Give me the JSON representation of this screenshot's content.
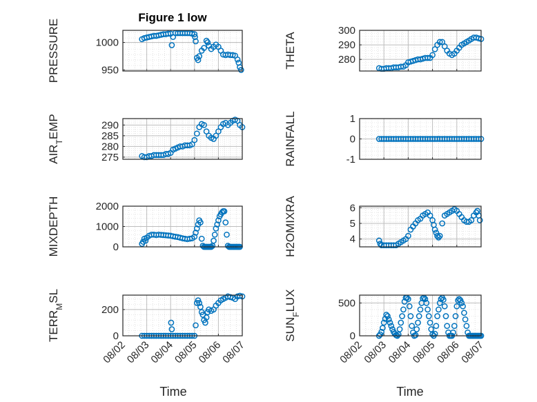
{
  "figure": {
    "title": "Figure 1 low",
    "xlabel": "Time",
    "xticks": [
      "08/02",
      "08/03",
      "08/04",
      "08/05",
      "08/06",
      "08/07"
    ],
    "marker": "open-circle",
    "marker_color": "#0072BD"
  },
  "chart_data": [
    {
      "type": "scatter",
      "name": "pressure-panel",
      "ylabel": "PRESSURE",
      "ylabel_sub": "",
      "ylim": [
        948,
        1022
      ],
      "yticks": [
        950,
        1000
      ],
      "xlim": [
        0,
        5
      ],
      "grid": true,
      "x": [
        0.8,
        0.9,
        1.0,
        1.1,
        1.2,
        1.3,
        1.4,
        1.5,
        1.6,
        1.7,
        1.8,
        1.9,
        2.0,
        2.05,
        2.1,
        2.2,
        2.3,
        2.4,
        2.5,
        2.6,
        2.7,
        2.8,
        2.9,
        3.0,
        3.02,
        3.05,
        3.1,
        3.15,
        3.2,
        3.3,
        3.4,
        3.5,
        3.55,
        3.6,
        3.7,
        3.8,
        3.9,
        4.0,
        4.1,
        4.2,
        4.3,
        4.4,
        4.5,
        4.6,
        4.7,
        4.8,
        4.85,
        4.9,
        4.95
      ],
      "y": [
        1006,
        1008,
        1009,
        1010,
        1011,
        1012,
        1012,
        1013,
        1014,
        1015,
        1015,
        1016,
        1016,
        995,
        1010,
        1017,
        1017,
        1017,
        1017,
        1017,
        1017,
        1017,
        1016,
        1015,
        1010,
        1002,
        972,
        968,
        975,
        985,
        990,
        1003,
        1000,
        994,
        988,
        992,
        996,
        992,
        985,
        978,
        977,
        978,
        977,
        977,
        976,
        969,
        963,
        955,
        950
      ]
    },
    {
      "type": "scatter",
      "name": "theta-panel",
      "ylabel": "THETA",
      "ylabel_sub": "",
      "ylim": [
        272,
        300
      ],
      "yticks": [
        280,
        290,
        300
      ],
      "xlim": [
        0,
        5
      ],
      "grid": true,
      "x": [
        0.8,
        0.9,
        1.0,
        1.1,
        1.2,
        1.3,
        1.4,
        1.5,
        1.6,
        1.7,
        1.8,
        1.9,
        2.0,
        2.1,
        2.2,
        2.3,
        2.4,
        2.5,
        2.6,
        2.7,
        2.8,
        2.9,
        3.0,
        3.1,
        3.2,
        3.3,
        3.4,
        3.5,
        3.6,
        3.7,
        3.8,
        3.9,
        4.0,
        4.1,
        4.2,
        4.3,
        4.4,
        4.5,
        4.6,
        4.7,
        4.8,
        4.9,
        5.0
      ],
      "y": [
        274,
        273.5,
        273.5,
        274,
        274,
        274,
        274.5,
        274.5,
        274.5,
        275,
        275,
        276,
        278,
        278.5,
        279,
        279.5,
        280,
        280,
        280.5,
        281,
        281,
        281,
        283,
        287,
        290,
        292,
        292,
        289,
        286,
        284,
        283,
        284,
        286,
        288,
        290,
        291,
        292,
        293,
        294,
        295,
        295,
        294.5,
        294
      ]
    },
    {
      "type": "scatter",
      "name": "air-temp-panel",
      "ylabel": "AIR",
      "ylabel_sub": "T",
      "ylabel_tail": "EMP",
      "ylim": [
        274,
        293
      ],
      "yticks": [
        275,
        280,
        285,
        290
      ],
      "xlim": [
        0,
        5
      ],
      "grid": true,
      "x": [
        0.8,
        0.9,
        1.0,
        1.1,
        1.2,
        1.3,
        1.4,
        1.5,
        1.6,
        1.7,
        1.8,
        1.9,
        2.0,
        2.1,
        2.2,
        2.3,
        2.4,
        2.5,
        2.6,
        2.7,
        2.8,
        2.9,
        3.0,
        3.1,
        3.2,
        3.3,
        3.4,
        3.5,
        3.6,
        3.7,
        3.8,
        3.9,
        4.0,
        4.1,
        4.2,
        4.3,
        4.4,
        4.5,
        4.6,
        4.7,
        4.8,
        4.9,
        5.0
      ],
      "y": [
        275.5,
        275,
        275,
        275.5,
        275.5,
        276,
        276,
        276,
        276,
        276,
        276.5,
        276.5,
        277,
        278.5,
        279,
        279.5,
        280,
        280,
        280.5,
        280.5,
        280.5,
        281,
        283,
        286,
        289,
        290.5,
        290,
        287,
        285,
        284,
        283.5,
        285,
        287,
        289,
        290.5,
        291,
        290,
        291,
        292,
        292.5,
        292,
        290,
        289
      ]
    },
    {
      "type": "scatter",
      "name": "rainfall-panel",
      "ylabel": "RAINFALL",
      "ylabel_sub": "",
      "ylim": [
        -1,
        1
      ],
      "yticks": [
        -1,
        0,
        1
      ],
      "xlim": [
        0,
        5
      ],
      "grid": true,
      "x": [
        0.8,
        0.9,
        1.0,
        1.1,
        1.2,
        1.3,
        1.4,
        1.5,
        1.6,
        1.7,
        1.8,
        1.9,
        2.0,
        2.1,
        2.2,
        2.3,
        2.4,
        2.5,
        2.6,
        2.7,
        2.8,
        2.9,
        3.0,
        3.1,
        3.2,
        3.3,
        3.4,
        3.5,
        3.6,
        3.7,
        3.8,
        3.9,
        4.0,
        4.1,
        4.2,
        4.3,
        4.4,
        4.5,
        4.6,
        4.7,
        4.8,
        4.9,
        5.0
      ],
      "y": [
        0,
        0,
        0,
        0,
        0,
        0,
        0,
        0,
        0,
        0,
        0,
        0,
        0,
        0,
        0,
        0,
        0,
        0,
        0,
        0,
        0,
        0,
        0,
        0,
        0,
        0,
        0,
        0,
        0,
        0,
        0,
        0,
        0,
        0,
        0,
        0,
        0,
        0,
        0,
        0,
        0,
        0,
        0
      ]
    },
    {
      "type": "scatter",
      "name": "mixdepth-panel",
      "ylabel": "MIXDEPTH",
      "ylabel_sub": "",
      "ylim": [
        0,
        2000
      ],
      "yticks": [
        0,
        1000,
        2000
      ],
      "xlim": [
        0,
        5
      ],
      "grid": true,
      "x": [
        0.8,
        0.85,
        0.9,
        0.95,
        1.0,
        1.1,
        1.2,
        1.3,
        1.4,
        1.5,
        1.6,
        1.7,
        1.8,
        1.9,
        2.0,
        2.1,
        2.2,
        2.3,
        2.4,
        2.5,
        2.6,
        2.7,
        2.8,
        2.9,
        3.0,
        3.05,
        3.1,
        3.15,
        3.2,
        3.25,
        3.3,
        3.35,
        3.4,
        3.45,
        3.5,
        3.55,
        3.6,
        3.65,
        3.7,
        3.75,
        3.8,
        3.85,
        3.9,
        3.95,
        4.0,
        4.05,
        4.1,
        4.15,
        4.2,
        4.25,
        4.3,
        4.35,
        4.4,
        4.45,
        4.5,
        4.55,
        4.6,
        4.65,
        4.7,
        4.75,
        4.8,
        4.85,
        4.9
      ],
      "y": [
        150,
        250,
        400,
        300,
        450,
        550,
        600,
        600,
        580,
        600,
        590,
        580,
        570,
        560,
        550,
        520,
        500,
        480,
        450,
        420,
        400,
        380,
        400,
        420,
        500,
        700,
        900,
        1100,
        1300,
        1200,
        400,
        50,
        0,
        0,
        0,
        0,
        0,
        0,
        0,
        50,
        300,
        600,
        900,
        1100,
        1300,
        1500,
        1600,
        1700,
        1750,
        1750,
        1200,
        600,
        50,
        0,
        0,
        0,
        0,
        0,
        0,
        0,
        0,
        0,
        0
      ]
    },
    {
      "type": "scatter",
      "name": "h2omixra-panel",
      "ylabel": "H2OMIXRA",
      "ylabel_sub": "",
      "ylim": [
        3.5,
        6.1
      ],
      "yticks": [
        4,
        5,
        6
      ],
      "xlim": [
        0,
        5
      ],
      "grid": true,
      "x": [
        0.8,
        0.85,
        0.9,
        1.0,
        1.1,
        1.2,
        1.3,
        1.4,
        1.5,
        1.6,
        1.7,
        1.8,
        1.9,
        2.0,
        2.1,
        2.2,
        2.3,
        2.4,
        2.5,
        2.6,
        2.7,
        2.8,
        2.9,
        3.0,
        3.05,
        3.1,
        3.15,
        3.2,
        3.25,
        3.3,
        3.4,
        3.5,
        3.6,
        3.7,
        3.8,
        3.9,
        4.0,
        4.1,
        4.2,
        4.3,
        4.4,
        4.5,
        4.6,
        4.7,
        4.8,
        4.85,
        4.9,
        4.95
      ],
      "y": [
        3.9,
        3.7,
        3.6,
        3.6,
        3.6,
        3.6,
        3.6,
        3.6,
        3.6,
        3.7,
        3.8,
        3.9,
        4.0,
        4.2,
        4.6,
        4.8,
        5.0,
        5.2,
        5.3,
        5.5,
        5.6,
        5.7,
        5.5,
        5.2,
        4.9,
        4.6,
        4.4,
        4.2,
        4.1,
        4.2,
        5.0,
        5.5,
        5.6,
        5.7,
        5.8,
        5.9,
        5.8,
        5.6,
        5.4,
        5.2,
        5.1,
        5.1,
        5.2,
        5.5,
        5.7,
        5.8,
        5.5,
        5.2
      ]
    },
    {
      "type": "scatter",
      "name": "terr-msl-panel",
      "ylabel": "TERR",
      "ylabel_sub": "M",
      "ylabel_tail": "SL",
      "ylim": [
        0,
        310
      ],
      "yticks": [
        0,
        200
      ],
      "xlim": [
        0,
        5
      ],
      "grid": true,
      "x": [
        0.8,
        0.9,
        1.0,
        1.1,
        1.2,
        1.3,
        1.4,
        1.5,
        1.6,
        1.7,
        1.8,
        1.9,
        2.0,
        2.02,
        2.05,
        2.1,
        2.2,
        2.3,
        2.4,
        2.5,
        2.6,
        2.7,
        2.8,
        2.9,
        3.0,
        3.05,
        3.1,
        3.15,
        3.2,
        3.25,
        3.3,
        3.35,
        3.4,
        3.45,
        3.5,
        3.55,
        3.6,
        3.7,
        3.8,
        3.9,
        4.0,
        4.1,
        4.2,
        4.3,
        4.4,
        4.5,
        4.6,
        4.7,
        4.8,
        4.9,
        5.0
      ],
      "y": [
        0,
        0,
        0,
        0,
        0,
        0,
        0,
        0,
        0,
        0,
        0,
        0,
        0,
        100,
        50,
        0,
        0,
        0,
        0,
        0,
        0,
        0,
        0,
        0,
        0,
        80,
        250,
        270,
        250,
        220,
        180,
        160,
        120,
        100,
        140,
        180,
        200,
        190,
        200,
        230,
        250,
        270,
        280,
        290,
        300,
        295,
        290,
        280,
        300,
        305,
        300
      ]
    },
    {
      "type": "scatter",
      "name": "sun-flux-panel",
      "ylabel": "SUN",
      "ylabel_sub": "F",
      "ylabel_tail": "LUX",
      "ylim": [
        0,
        620
      ],
      "yticks": [
        0,
        500
      ],
      "xlim": [
        0,
        5
      ],
      "grid": true,
      "x": [
        0.8,
        0.85,
        0.9,
        0.95,
        1.0,
        1.05,
        1.1,
        1.15,
        1.2,
        1.25,
        1.3,
        1.35,
        1.4,
        1.45,
        1.5,
        1.55,
        1.6,
        1.65,
        1.7,
        1.75,
        1.8,
        1.85,
        1.9,
        1.95,
        2.0,
        2.05,
        2.1,
        2.15,
        2.2,
        2.25,
        2.3,
        2.35,
        2.4,
        2.45,
        2.5,
        2.55,
        2.6,
        2.65,
        2.7,
        2.75,
        2.8,
        2.85,
        2.9,
        2.95,
        3.0,
        3.05,
        3.1,
        3.15,
        3.2,
        3.25,
        3.3,
        3.35,
        3.4,
        3.45,
        3.5,
        3.55,
        3.6,
        3.65,
        3.7,
        3.75,
        3.8,
        3.85,
        3.9,
        3.95,
        4.0,
        4.05,
        4.1,
        4.15,
        4.2,
        4.25,
        4.3,
        4.35,
        4.4,
        4.45,
        4.5,
        4.55,
        4.6,
        4.65,
        4.7,
        4.75,
        4.8,
        4.85,
        4.9,
        4.95,
        5.0
      ],
      "y": [
        0,
        20,
        60,
        120,
        200,
        260,
        320,
        300,
        250,
        200,
        150,
        100,
        60,
        30,
        10,
        0,
        20,
        100,
        200,
        300,
        400,
        520,
        580,
        580,
        560,
        450,
        300,
        150,
        50,
        0,
        10,
        100,
        200,
        300,
        400,
        500,
        570,
        580,
        560,
        500,
        400,
        300,
        200,
        100,
        20,
        0,
        30,
        150,
        300,
        400,
        500,
        560,
        580,
        550,
        450,
        300,
        150,
        50,
        0,
        0,
        0,
        50,
        150,
        300,
        450,
        540,
        560,
        540,
        500,
        450,
        350,
        250,
        150,
        50,
        0,
        0,
        0,
        0,
        0,
        0,
        0,
        0,
        0,
        0,
        0
      ]
    }
  ]
}
